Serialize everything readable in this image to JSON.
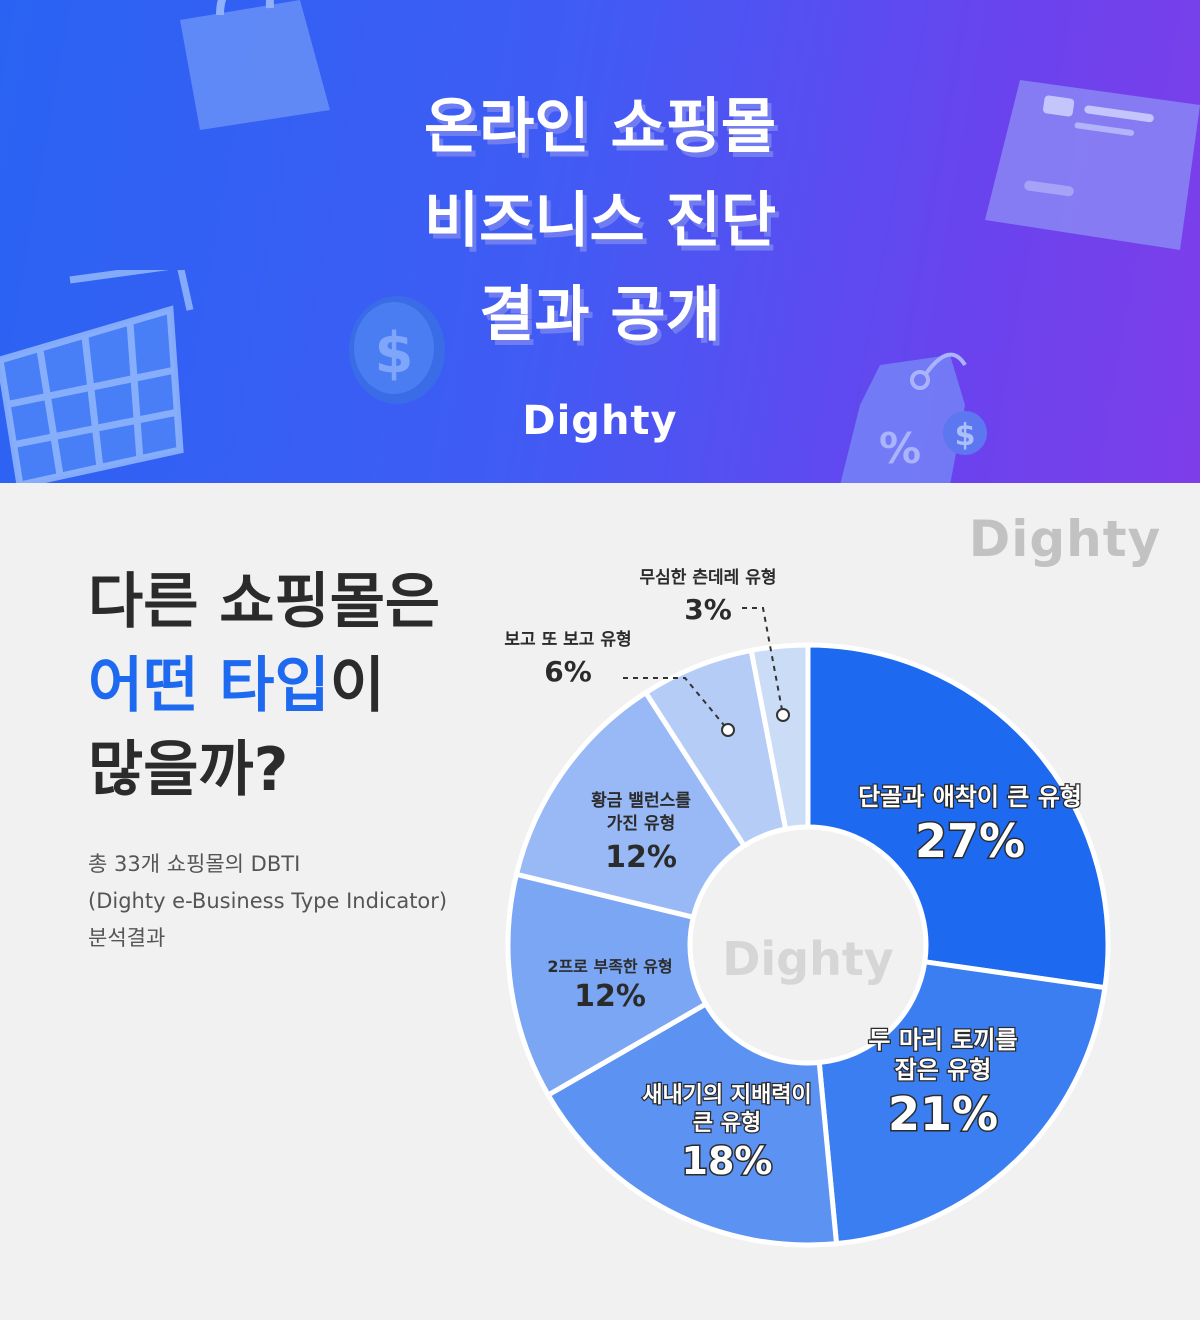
{
  "banner": {
    "title_lines": [
      "온라인 쇼핑몰",
      "비즈니스 진단",
      "결과 공개"
    ],
    "logo": "Dighty"
  },
  "watermark_logo": "Dighty",
  "headline": {
    "line1": "다른 쇼핑몰은",
    "line2_accent": "어떤 타입",
    "line2_rest": "이",
    "line3": "많을까?"
  },
  "subtext": {
    "line1": "총 33개 쇼핑몰의 DBTI",
    "line2": "(Dighty e-Business Type Indicator)",
    "line3": "분석결과"
  },
  "colors": {
    "banner_start": "#2a63f3",
    "banner_end": "#7d3ee9",
    "accent": "#1d6af0"
  },
  "chart_data": {
    "type": "pie",
    "center_label": "Dighty",
    "slices": [
      {
        "label": "단골과 애착이 큰 유형",
        "value": 27,
        "value_label": "27%",
        "color": "#1d6af0"
      },
      {
        "label": "두 마리 토끼를 잡은 유형",
        "value": 21,
        "value_label": "21%",
        "color": "#3b7ef1"
      },
      {
        "label": "새내기의 지배력이 큰 유형",
        "value": 18,
        "value_label": "18%",
        "color": "#5c92f2"
      },
      {
        "label": "2프로 부족한 유형",
        "value": 12,
        "value_label": "12%",
        "color": "#7ba6f3"
      },
      {
        "label": "황금 밸런스를 가진 유형",
        "value": 12,
        "value_label": "12%",
        "color": "#98b9f5"
      },
      {
        "label": "보고 또 보고 유형",
        "value": 6,
        "value_label": "6%",
        "color": "#b5cdf6"
      },
      {
        "label": "무심한 츤데레 유형",
        "value": 3,
        "value_label": "3%",
        "color": "#cbdcf7"
      }
    ]
  }
}
